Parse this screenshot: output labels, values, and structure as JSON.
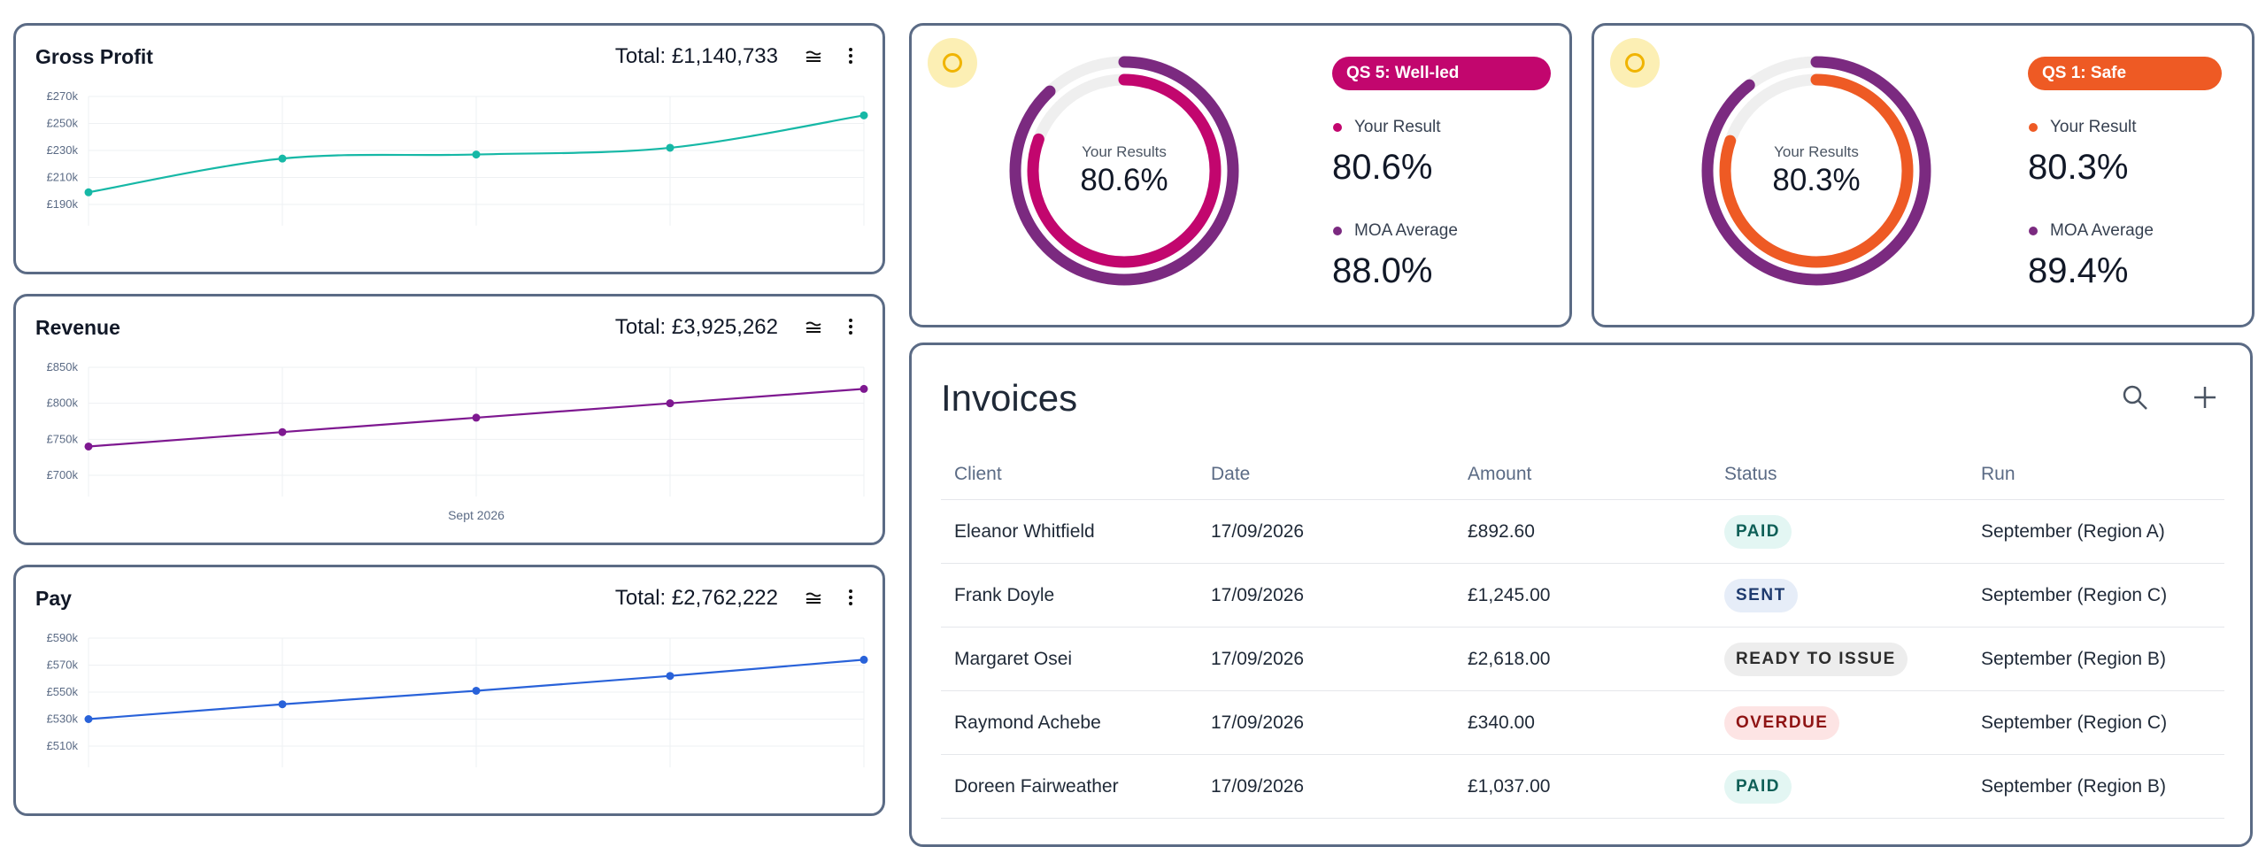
{
  "charts": [
    {
      "id": "gross-profit",
      "title": "Gross Profit",
      "total": "Total: £1,140,733",
      "color": "#16b8a6",
      "xlabel": "",
      "ylim": [
        190,
        270
      ],
      "yticks": [
        "£270k",
        "£250k",
        "£230k",
        "£210k",
        "£190k"
      ],
      "ytick_values": [
        270,
        250,
        230,
        210,
        190
      ],
      "values": [
        199,
        224,
        227,
        232,
        256
      ],
      "smooth": true
    },
    {
      "id": "revenue",
      "title": "Revenue",
      "total": "Total: £3,925,262",
      "color": "#7e1890",
      "xlabel": "Sept 2026",
      "ylim": [
        700,
        850
      ],
      "yticks": [
        "£850k",
        "£800k",
        "£750k",
        "£700k"
      ],
      "ytick_values": [
        850,
        800,
        750,
        700
      ],
      "values": [
        740,
        760,
        780,
        800,
        820
      ],
      "smooth": false
    },
    {
      "id": "pay",
      "title": "Pay",
      "total": "Total: £2,762,222",
      "color": "#2962d9",
      "xlabel": "",
      "ylim": [
        510,
        590
      ],
      "yticks": [
        "£590k",
        "£570k",
        "£550k",
        "£530k",
        "£510k"
      ],
      "ytick_values": [
        590,
        570,
        550,
        530,
        510
      ],
      "values": [
        530,
        541,
        551,
        562,
        574
      ],
      "smooth": false
    }
  ],
  "chart_data": [
    {
      "type": "line",
      "title": "Gross Profit",
      "xlabel": "",
      "ylabel": "",
      "ylim": [
        190000,
        270000
      ],
      "series": [
        {
          "values": [
            199000,
            224000,
            227000,
            232000,
            256000
          ]
        }
      ]
    },
    {
      "type": "line",
      "title": "Revenue",
      "xlabel": "Sept 2026",
      "ylabel": "",
      "ylim": [
        700000,
        850000
      ],
      "series": [
        {
          "values": [
            740000,
            760000,
            780000,
            800000,
            820000
          ]
        }
      ]
    },
    {
      "type": "line",
      "title": "Pay",
      "xlabel": "",
      "ylabel": "",
      "ylim": [
        510000,
        590000
      ],
      "series": [
        {
          "values": [
            530000,
            541000,
            551000,
            562000,
            574000
          ]
        }
      ]
    }
  ],
  "scores": [
    {
      "id": "qs5",
      "center_label": "Your Results",
      "center_value": "80.6%",
      "pill": "QS 5: Well-led",
      "pill_color": "#c2066e",
      "result_label": "Your Result",
      "result_value": "80.6%",
      "result_fraction": 0.806,
      "avg_label": "MOA Average",
      "avg_value": "88.0%",
      "avg_fraction": 0.88,
      "result_color": "#c2066e",
      "avg_color": "#7b2a80"
    },
    {
      "id": "qs1",
      "center_label": "Your Results",
      "center_value": "80.3%",
      "pill": "QS 1: Safe",
      "pill_color": "#ee5a24",
      "result_label": "Your Result",
      "result_value": "80.3%",
      "result_fraction": 0.803,
      "avg_label": "MOA Average",
      "avg_value": "89.4%",
      "avg_fraction": 0.894,
      "result_color": "#ee5a24",
      "avg_color": "#7b2a80"
    }
  ],
  "invoices": {
    "title": "Invoices",
    "columns": [
      "Client",
      "Date",
      "Amount",
      "Status",
      "Run"
    ],
    "rows": [
      {
        "client": "Eleanor Whitfield",
        "date": "17/09/2026",
        "amount": "£892.60",
        "status": "PAID",
        "run": "September (Region A)"
      },
      {
        "client": "Frank Doyle",
        "date": "17/09/2026",
        "amount": "£1,245.00",
        "status": "SENT",
        "run": "September (Region C)"
      },
      {
        "client": "Margaret Osei",
        "date": "17/09/2026",
        "amount": "£2,618.00",
        "status": "READY TO ISSUE",
        "run": "September (Region B)"
      },
      {
        "client": "Raymond Achebe",
        "date": "17/09/2026",
        "amount": "£340.00",
        "status": "OVERDUE",
        "run": "September (Region C)"
      },
      {
        "client": "Doreen Fairweather",
        "date": "17/09/2026",
        "amount": "£1,037.00",
        "status": "PAID",
        "run": "September (Region B)"
      }
    ],
    "status_styles": {
      "PAID": {
        "bg": "#e3f6f3",
        "fg": "#0f5f57"
      },
      "SENT": {
        "bg": "#e6edf8",
        "fg": "#1e3a6e"
      },
      "READY TO ISSUE": {
        "bg": "#ededed",
        "fg": "#2d2d2d"
      },
      "OVERDUE": {
        "bg": "#fde4e4",
        "fg": "#8f1414"
      }
    }
  },
  "icons": {
    "stack": "stack-layers-icon",
    "menu": "vertical-dots-icon",
    "search": "search-icon",
    "add": "plus-icon",
    "sun": "sun-icon"
  }
}
